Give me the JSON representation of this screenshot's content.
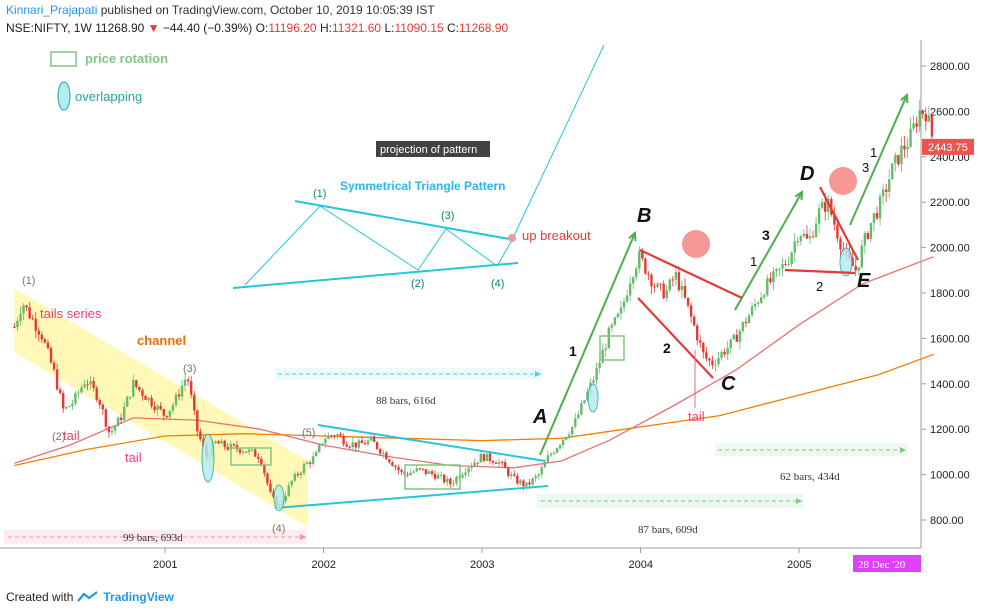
{
  "header": {
    "publisher": "Kinnari_Prajapati",
    "published_text": "published on TradingView.com, October 10, 2019 10:05:39 IST",
    "symbol": "NSE:NIFTY, 1W",
    "last": "11268.90",
    "change": "−44.40 (−0.39%)",
    "o_label": "O:",
    "o_val": "11196.20",
    "h_label": "H:",
    "h_val": "11321.60",
    "l_label": "L:",
    "l_val": "11090.15",
    "c_label": "C:",
    "c_val": "11268.90"
  },
  "footer": {
    "created_with": "Created with",
    "brand": "TradingView"
  },
  "chart_data": {
    "type": "candlestick",
    "y_ticks": [
      800,
      1000,
      1200,
      1400,
      1600,
      1800,
      2000,
      2200,
      2400,
      2600,
      2800
    ],
    "y_tick_labels": [
      "800.00",
      "1000.00",
      "1200.00",
      "1400.00",
      "1600.00",
      "1800.00",
      "2000.00",
      "2200.00",
      "2400.00",
      "2600.00",
      "2800.00"
    ],
    "ylim": [
      680,
      2900
    ],
    "x_ticks": [
      2001,
      2002,
      2003,
      2004,
      2005
    ],
    "x_tick_labels": [
      "2001",
      "2002",
      "2003",
      "2004",
      "2005"
    ],
    "xlim": [
      2000.05,
      2005.85
    ],
    "last_price_label": "2443.75",
    "last_price": 2443.75,
    "date_label": "28 Dec '20",
    "price_path": [
      [
        2000.05,
        1650
      ],
      [
        2000.1,
        1760
      ],
      [
        2000.15,
        1700
      ],
      [
        2000.22,
        1620
      ],
      [
        2000.3,
        1450
      ],
      [
        2000.36,
        1280
      ],
      [
        2000.42,
        1320
      ],
      [
        2000.5,
        1420
      ],
      [
        2000.58,
        1340
      ],
      [
        2000.65,
        1180
      ],
      [
        2000.72,
        1250
      ],
      [
        2000.8,
        1400
      ],
      [
        2000.9,
        1330
      ],
      [
        2001.0,
        1260
      ],
      [
        2001.06,
        1320
      ],
      [
        2001.14,
        1440
      ],
      [
        2001.2,
        1200
      ],
      [
        2001.26,
        1080
      ],
      [
        2001.32,
        1140
      ],
      [
        2001.4,
        1120
      ],
      [
        2001.5,
        1110
      ],
      [
        2001.6,
        1080
      ],
      [
        2001.67,
        900
      ],
      [
        2001.72,
        860
      ],
      [
        2001.8,
        970
      ],
      [
        2001.88,
        1040
      ],
      [
        2001.95,
        1080
      ],
      [
        2002.0,
        1160
      ],
      [
        2002.08,
        1180
      ],
      [
        2002.15,
        1140
      ],
      [
        2002.22,
        1130
      ],
      [
        2002.3,
        1150
      ],
      [
        2002.4,
        1080
      ],
      [
        2002.5,
        1000
      ],
      [
        2002.6,
        1020
      ],
      [
        2002.7,
        1000
      ],
      [
        2002.8,
        960
      ],
      [
        2002.9,
        1030
      ],
      [
        2003.0,
        1080
      ],
      [
        2003.1,
        1060
      ],
      [
        2003.2,
        980
      ],
      [
        2003.28,
        950
      ],
      [
        2003.36,
        1000
      ],
      [
        2003.42,
        1080
      ],
      [
        2003.5,
        1150
      ],
      [
        2003.58,
        1220
      ],
      [
        2003.66,
        1350
      ],
      [
        2003.72,
        1450
      ],
      [
        2003.8,
        1620
      ],
      [
        2003.88,
        1720
      ],
      [
        2003.94,
        1880
      ],
      [
        2003.99,
        1960
      ],
      [
        2004.04,
        1900
      ],
      [
        2004.1,
        1820
      ],
      [
        2004.16,
        1800
      ],
      [
        2004.22,
        1880
      ],
      [
        2004.28,
        1770
      ],
      [
        2004.34,
        1650
      ],
      [
        2004.4,
        1520
      ],
      [
        2004.45,
        1490
      ],
      [
        2004.52,
        1540
      ],
      [
        2004.58,
        1580
      ],
      [
        2004.64,
        1650
      ],
      [
        2004.7,
        1720
      ],
      [
        2004.78,
        1820
      ],
      [
        2004.86,
        1880
      ],
      [
        2004.94,
        1960
      ],
      [
        2005.0,
        2080
      ],
      [
        2005.06,
        2020
      ],
      [
        2005.12,
        2150
      ],
      [
        2005.18,
        2200
      ],
      [
        2005.24,
        2070
      ],
      [
        2005.3,
        1950
      ],
      [
        2005.36,
        1900
      ],
      [
        2005.4,
        2000
      ],
      [
        2005.46,
        2120
      ],
      [
        2005.52,
        2200
      ],
      [
        2005.58,
        2330
      ],
      [
        2005.64,
        2420
      ],
      [
        2005.7,
        2480
      ],
      [
        2005.76,
        2600
      ],
      [
        2005.8,
        2600
      ],
      [
        2005.85,
        2460
      ]
    ],
    "moving_averages": [
      {
        "name": "MA-red",
        "color": "#e57373",
        "points": [
          [
            2000.05,
            1050
          ],
          [
            2000.4,
            1130
          ],
          [
            2000.8,
            1250
          ],
          [
            2001.2,
            1240
          ],
          [
            2001.6,
            1200
          ],
          [
            2002.0,
            1130
          ],
          [
            2002.4,
            1080
          ],
          [
            2002.8,
            1040
          ],
          [
            2003.2,
            1030
          ],
          [
            2003.5,
            1060
          ],
          [
            2003.8,
            1150
          ],
          [
            2004.2,
            1300
          ],
          [
            2004.6,
            1460
          ],
          [
            2005.0,
            1660
          ],
          [
            2005.4,
            1840
          ],
          [
            2005.85,
            1960
          ]
        ]
      },
      {
        "name": "MA-orange",
        "color": "#f57c00",
        "points": [
          [
            2000.05,
            1040
          ],
          [
            2000.5,
            1110
          ],
          [
            2001.0,
            1170
          ],
          [
            2001.5,
            1180
          ],
          [
            2002.0,
            1170
          ],
          [
            2002.5,
            1160
          ],
          [
            2003.0,
            1150
          ],
          [
            2003.5,
            1160
          ],
          [
            2004.0,
            1210
          ],
          [
            2004.5,
            1260
          ],
          [
            2005.0,
            1350
          ],
          [
            2005.5,
            1440
          ],
          [
            2005.85,
            1530
          ]
        ]
      }
    ],
    "annotations": {
      "legend_rotation": "price rotation",
      "legend_overlap": "overlapping",
      "tails_series": "tails series",
      "channel": "channel",
      "tail_a": "tail",
      "tail_b": "tail",
      "tail_c": "tail",
      "wave_labels": [
        "(1)",
        "(2)",
        "(3)",
        "(4)",
        "(5)"
      ],
      "projection": "projection of pattern",
      "sym_title": "Symmetrical Triangle Pattern",
      "sym_points": [
        "(1)",
        "(2)",
        "(3)",
        "(4)"
      ],
      "breakout": "up breakout",
      "bars_88": "88 bars, 616d",
      "bars_99": "99 bars, 693d",
      "bars_87": "87 bars, 609d",
      "bars_62": "62 bars, 434d",
      "letters": [
        "A",
        "B",
        "C",
        "D",
        "E"
      ],
      "nums": [
        "1",
        "2",
        "1",
        "2",
        "3",
        "1",
        "3"
      ]
    },
    "colors": {
      "up": "#66bb6a",
      "down": "#e53935",
      "channel": "#fff59d",
      "trend": "#26c6da",
      "arrow": "#4caf50",
      "red_line": "#e53935",
      "label_bg": "#e040fb"
    }
  }
}
